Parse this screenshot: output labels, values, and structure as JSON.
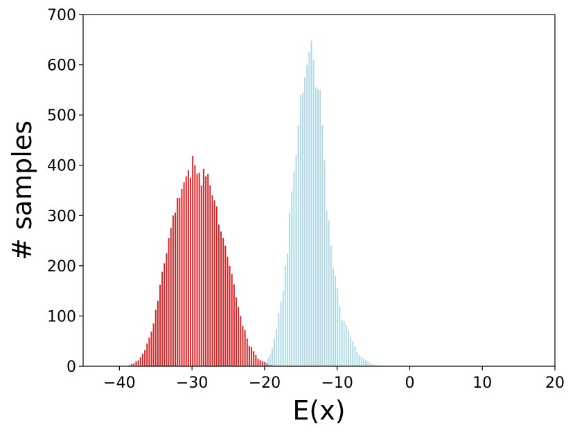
{
  "chart_data": {
    "type": "bar",
    "title": "",
    "xlabel": "E(x)",
    "ylabel": "# samples",
    "xlim": [
      -45,
      20
    ],
    "ylim": [
      0,
      700
    ],
    "x_ticks": [
      -40,
      -30,
      -20,
      -10,
      0,
      10,
      20
    ],
    "y_ticks": [
      0,
      100,
      200,
      300,
      400,
      500,
      600,
      700
    ],
    "x_tick_labels": [
      "−40",
      "−30",
      "−20",
      "−10",
      "0",
      "10",
      "20"
    ],
    "y_tick_labels": [
      "0",
      "100",
      "200",
      "300",
      "400",
      "500",
      "600",
      "700"
    ],
    "grid": false,
    "legend": "none",
    "bar_width": 0.18,
    "series": [
      {
        "color": "#e41a1c",
        "x": [
          -38.6,
          -38.3,
          -38.0,
          -37.7,
          -37.4,
          -37.1,
          -36.8,
          -36.5,
          -36.2,
          -35.9,
          -35.6,
          -35.3,
          -35.0,
          -34.7,
          -34.4,
          -34.1,
          -33.8,
          -33.5,
          -33.2,
          -32.9,
          -32.6,
          -32.3,
          -32.0,
          -31.7,
          -31.4,
          -31.1,
          -30.8,
          -30.5,
          -30.2,
          -29.9,
          -29.6,
          -29.3,
          -29.0,
          -28.7,
          -28.4,
          -28.1,
          -27.8,
          -27.5,
          -27.2,
          -26.9,
          -26.6,
          -26.3,
          -26.0,
          -25.7,
          -25.4,
          -25.1,
          -24.8,
          -24.5,
          -24.2,
          -23.9,
          -23.6,
          -23.3,
          -23.0,
          -22.7,
          -22.4,
          -22.1,
          -21.8,
          -21.5,
          -21.2,
          -20.9,
          -20.6,
          -20.3,
          -20.0,
          -19.7,
          -19.4,
          -19.1
        ],
        "values": [
          2,
          4,
          6,
          10,
          12,
          18,
          25,
          32,
          45,
          57,
          69,
          85,
          112,
          130,
          162,
          188,
          205,
          225,
          255,
          275,
          300,
          306,
          335,
          335,
          353,
          366,
          378,
          390,
          375,
          419,
          400,
          383,
          385,
          360,
          393,
          378,
          383,
          360,
          340,
          330,
          318,
          282,
          268,
          255,
          240,
          218,
          200,
          183,
          163,
          137,
          118,
          100,
          80,
          72,
          55,
          40,
          38,
          30,
          22,
          15,
          12,
          10,
          8,
          5,
          3,
          2
        ]
      },
      {
        "color": "#add8e6",
        "x": [
          -20.45,
          -20.15,
          -19.85,
          -19.55,
          -19.25,
          -18.95,
          -18.65,
          -18.35,
          -18.05,
          -17.75,
          -17.45,
          -17.15,
          -16.85,
          -16.55,
          -16.25,
          -15.95,
          -15.65,
          -15.35,
          -15.05,
          -14.75,
          -14.45,
          -14.15,
          -13.85,
          -13.55,
          -13.25,
          -12.95,
          -12.65,
          -12.35,
          -12.05,
          -11.75,
          -11.45,
          -11.15,
          -10.85,
          -10.55,
          -10.25,
          -9.95,
          -9.65,
          -9.35,
          -9.05,
          -8.75,
          -8.45,
          -8.15,
          -7.85,
          -7.55,
          -7.25,
          -6.95,
          -6.65,
          -6.35,
          -6.05,
          -5.75,
          -5.45,
          -5.15,
          -4.85,
          -4.55,
          -4.25
        ],
        "values": [
          2,
          5,
          10,
          16,
          24,
          36,
          54,
          73,
          105,
          128,
          150,
          200,
          225,
          305,
          348,
          388,
          420,
          480,
          540,
          545,
          575,
          600,
          625,
          648,
          610,
          555,
          551,
          550,
          480,
          410,
          310,
          290,
          240,
          195,
          180,
          155,
          120,
          92,
          90,
          82,
          72,
          58,
          50,
          40,
          28,
          22,
          18,
          15,
          12,
          10,
          6,
          4,
          3,
          2,
          1
        ]
      }
    ]
  }
}
